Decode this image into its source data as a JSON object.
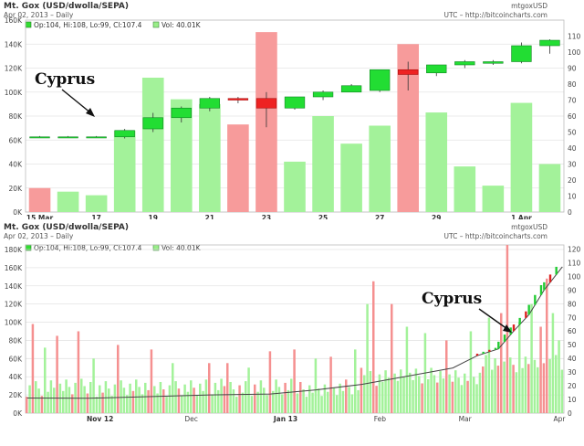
{
  "chart_data": [
    {
      "type": "candlestick+bar",
      "title": "Mt. Gox (USD/dwolla/SEPA)",
      "subtitle": "Apr 02, 2013 – Daily",
      "symbol": "mtgoxUSD",
      "source": "UTC – http://bitcoincharts.com",
      "legend": {
        "ohlc": "Op:104, Hi:108, Lo:99, Cl:107.4",
        "vol": "Vol: 40.01K"
      },
      "left_axis": {
        "ticks": [
          "0K",
          "20K",
          "40K",
          "60K",
          "80K",
          "100K",
          "120K",
          "140K",
          "160K"
        ],
        "ylim": [
          0,
          160000
        ]
      },
      "right_axis": {
        "ticks": [
          "0",
          "10",
          "20",
          "30",
          "40",
          "50",
          "60",
          "70",
          "80",
          "90",
          "100",
          "110"
        ],
        "ylim": [
          0,
          120
        ]
      },
      "x_ticks": [
        {
          "label": "15 Mar",
          "index": 0,
          "bold": true
        },
        {
          "label": "17",
          "index": 2,
          "bold": false
        },
        {
          "label": "19",
          "index": 4,
          "bold": false
        },
        {
          "label": "21",
          "index": 6,
          "bold": false
        },
        {
          "label": "23",
          "index": 8,
          "bold": false
        },
        {
          "label": "25",
          "index": 10,
          "bold": false
        },
        {
          "label": "27",
          "index": 12,
          "bold": false
        },
        {
          "label": "29",
          "index": 14,
          "bold": false
        },
        {
          "label": "1 Apr",
          "index": 17,
          "bold": true
        }
      ],
      "annotation": "Cyprus",
      "volume": [
        {
          "v": 20000,
          "up": false
        },
        {
          "v": 17000,
          "up": true
        },
        {
          "v": 14000,
          "up": true
        },
        {
          "v": 68000,
          "up": true
        },
        {
          "v": 112000,
          "up": true
        },
        {
          "v": 94000,
          "up": true
        },
        {
          "v": 90000,
          "up": true
        },
        {
          "v": 73000,
          "up": false
        },
        {
          "v": 150000,
          "up": false
        },
        {
          "v": 42000,
          "up": true
        },
        {
          "v": 80000,
          "up": true
        },
        {
          "v": 57000,
          "up": true
        },
        {
          "v": 72000,
          "up": true
        },
        {
          "v": 140000,
          "up": false
        },
        {
          "v": 83000,
          "up": true
        },
        {
          "v": 38000,
          "up": true
        },
        {
          "v": 22000,
          "up": true
        },
        {
          "v": 91000,
          "up": true
        },
        {
          "v": 40000,
          "up": true
        }
      ],
      "candles": [
        {
          "o": 47,
          "h": 47.5,
          "l": 46.5,
          "c": 47
        },
        {
          "o": 47,
          "h": 47.5,
          "l": 46.5,
          "c": 47
        },
        {
          "o": 47,
          "h": 47.5,
          "l": 46.5,
          "c": 47
        },
        {
          "o": 47,
          "h": 52,
          "l": 46,
          "c": 51
        },
        {
          "o": 52,
          "h": 62,
          "l": 50,
          "c": 59
        },
        {
          "o": 59,
          "h": 66,
          "l": 56,
          "c": 65
        },
        {
          "o": 65,
          "h": 72,
          "l": 63,
          "c": 71
        },
        {
          "o": 71,
          "h": 72,
          "l": 68,
          "c": 70
        },
        {
          "o": 71,
          "h": 75,
          "l": 53,
          "c": 65
        },
        {
          "o": 65,
          "h": 72,
          "l": 64,
          "c": 72
        },
        {
          "o": 72,
          "h": 76,
          "l": 70,
          "c": 75
        },
        {
          "o": 75,
          "h": 80,
          "l": 75,
          "c": 79
        },
        {
          "o": 76,
          "h": 89,
          "l": 75,
          "c": 89
        },
        {
          "o": 89,
          "h": 94,
          "l": 76,
          "c": 86
        },
        {
          "o": 87,
          "h": 92,
          "l": 85,
          "c": 92
        },
        {
          "o": 92,
          "h": 95,
          "l": 90,
          "c": 94
        },
        {
          "o": 93,
          "h": 95,
          "l": 92,
          "c": 94
        },
        {
          "o": 94,
          "h": 106,
          "l": 93,
          "c": 104
        },
        {
          "o": 104,
          "h": 108,
          "l": 99,
          "c": 107.4
        }
      ]
    },
    {
      "type": "bar+line",
      "title": "Mt. Gox (USD/dwolla/SEPA)",
      "subtitle": "Apr 02, 2013 – Daily",
      "symbol": "mtgoxUSD",
      "source": "UTC – http://bitcoincharts.com",
      "legend": {
        "ohlc": "Op:104, Hi:108, Lo:99, Cl:107.4",
        "vol": "Vol: 40.01K"
      },
      "left_axis": {
        "ticks": [
          "0K",
          "20K",
          "40K",
          "60K",
          "80K",
          "100K",
          "120K",
          "140K",
          "160K",
          "180K"
        ],
        "ylim": [
          0,
          185000
        ]
      },
      "right_axis": {
        "ticks": [
          "0",
          "10",
          "20",
          "30",
          "40",
          "50",
          "60",
          "70",
          "80",
          "90",
          "100",
          "110",
          "120"
        ],
        "ylim": [
          0,
          123
        ]
      },
      "x_ticks": [
        {
          "label": "Nov 12",
          "index": 24,
          "bold": true
        },
        {
          "label": "Dec",
          "index": 54,
          "bold": false
        },
        {
          "label": "Jan 13",
          "index": 85,
          "bold": true
        },
        {
          "label": "Feb",
          "index": 116,
          "bold": false
        },
        {
          "label": "Mar",
          "index": 144,
          "bold": false
        },
        {
          "label": "Apr",
          "index": 175,
          "bold": false
        }
      ],
      "annotation": "Cyprus",
      "days": 177,
      "spikes": [
        {
          "i": 2,
          "v": 98000,
          "up": false
        },
        {
          "i": 6,
          "v": 72000,
          "up": true
        },
        {
          "i": 10,
          "v": 85000,
          "up": false
        },
        {
          "i": 17,
          "v": 90000,
          "up": false
        },
        {
          "i": 22,
          "v": 60000,
          "up": true
        },
        {
          "i": 30,
          "v": 75000,
          "up": false
        },
        {
          "i": 41,
          "v": 70000,
          "up": false
        },
        {
          "i": 48,
          "v": 55000,
          "up": true
        },
        {
          "i": 60,
          "v": 55000,
          "up": false
        },
        {
          "i": 66,
          "v": 55000,
          "up": false
        },
        {
          "i": 73,
          "v": 50000,
          "up": true
        },
        {
          "i": 80,
          "v": 68000,
          "up": false
        },
        {
          "i": 88,
          "v": 70000,
          "up": false
        },
        {
          "i": 95,
          "v": 60000,
          "up": true
        },
        {
          "i": 100,
          "v": 62000,
          "up": false
        },
        {
          "i": 108,
          "v": 70000,
          "up": true
        },
        {
          "i": 112,
          "v": 120000,
          "up": true
        },
        {
          "i": 114,
          "v": 145000,
          "up": false
        },
        {
          "i": 120,
          "v": 120000,
          "up": false
        },
        {
          "i": 125,
          "v": 95000,
          "up": true
        },
        {
          "i": 131,
          "v": 88000,
          "up": true
        },
        {
          "i": 138,
          "v": 80000,
          "up": false
        },
        {
          "i": 146,
          "v": 90000,
          "up": true
        },
        {
          "i": 152,
          "v": 105000,
          "up": true
        },
        {
          "i": 156,
          "v": 110000,
          "up": false
        },
        {
          "i": 158,
          "v": 185000,
          "up": false
        },
        {
          "i": 162,
          "v": 100000,
          "up": true
        },
        {
          "i": 166,
          "v": 120000,
          "up": true
        },
        {
          "i": 169,
          "v": 95000,
          "up": false
        },
        {
          "i": 171,
          "v": 148000,
          "up": false
        },
        {
          "i": 173,
          "v": 110000,
          "up": true
        },
        {
          "i": 175,
          "v": 80000,
          "up": true
        }
      ],
      "price_points": [
        {
          "i": 0,
          "p": 11
        },
        {
          "i": 20,
          "p": 10.8
        },
        {
          "i": 40,
          "p": 12
        },
        {
          "i": 60,
          "p": 13.3
        },
        {
          "i": 80,
          "p": 14
        },
        {
          "i": 95,
          "p": 17
        },
        {
          "i": 110,
          "p": 21
        },
        {
          "i": 125,
          "p": 27
        },
        {
          "i": 140,
          "p": 33
        },
        {
          "i": 148,
          "p": 42
        },
        {
          "i": 155,
          "p": 47
        },
        {
          "i": 160,
          "p": 60
        },
        {
          "i": 165,
          "p": 72
        },
        {
          "i": 170,
          "p": 90
        },
        {
          "i": 176,
          "p": 107
        }
      ]
    }
  ]
}
